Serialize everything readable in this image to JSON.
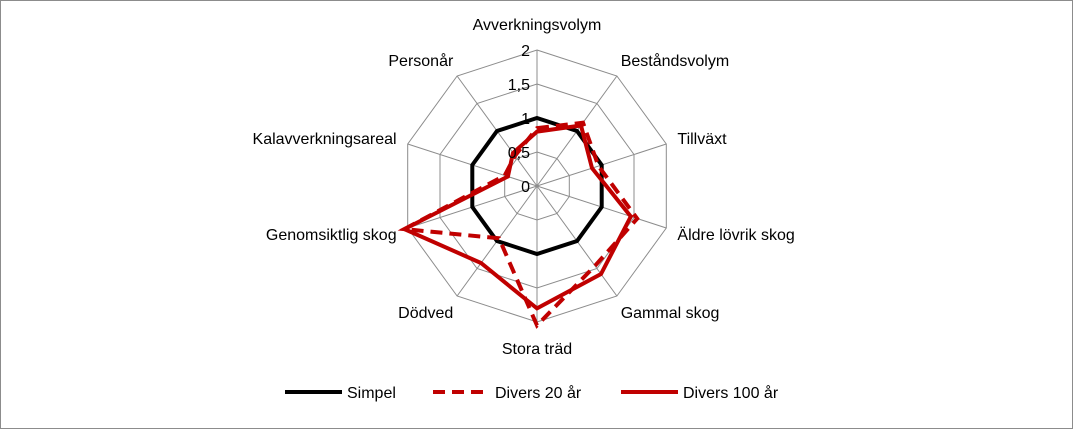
{
  "chart_data": {
    "type": "radar",
    "categories": [
      "Avverkningsvolym",
      "Beståndsvolym",
      "Tillväxt",
      "Äldre lövrik skog",
      "Gammal skog",
      "Stora träd",
      "Dödved",
      "Genomsiktlig skog",
      "Kalavverkningsareal",
      "Personår"
    ],
    "ticks": [
      "0",
      "0,5",
      "1",
      "1,5",
      "2"
    ],
    "tick_values": [
      0,
      0.5,
      1,
      1.5,
      2
    ],
    "rmax": 2,
    "grid": true,
    "legend_position": "bottom",
    "series": [
      {
        "name": "Simpel",
        "values": [
          1,
          1,
          1,
          1,
          1,
          1,
          1,
          1,
          1,
          1
        ],
        "color": "#000000",
        "dash": "solid"
      },
      {
        "name": "Divers 20 år",
        "values": [
          0.85,
          1.15,
          0.95,
          1.55,
          1.45,
          2.05,
          0.95,
          2.05,
          0.5,
          0.55
        ],
        "color": "#c00000",
        "dash": "dashed"
      },
      {
        "name": "Divers 100 år",
        "values": [
          0.8,
          1.1,
          0.85,
          1.45,
          1.6,
          1.8,
          1.4,
          2.05,
          0.45,
          0.6
        ],
        "color": "#c00000",
        "dash": "solid"
      }
    ]
  }
}
